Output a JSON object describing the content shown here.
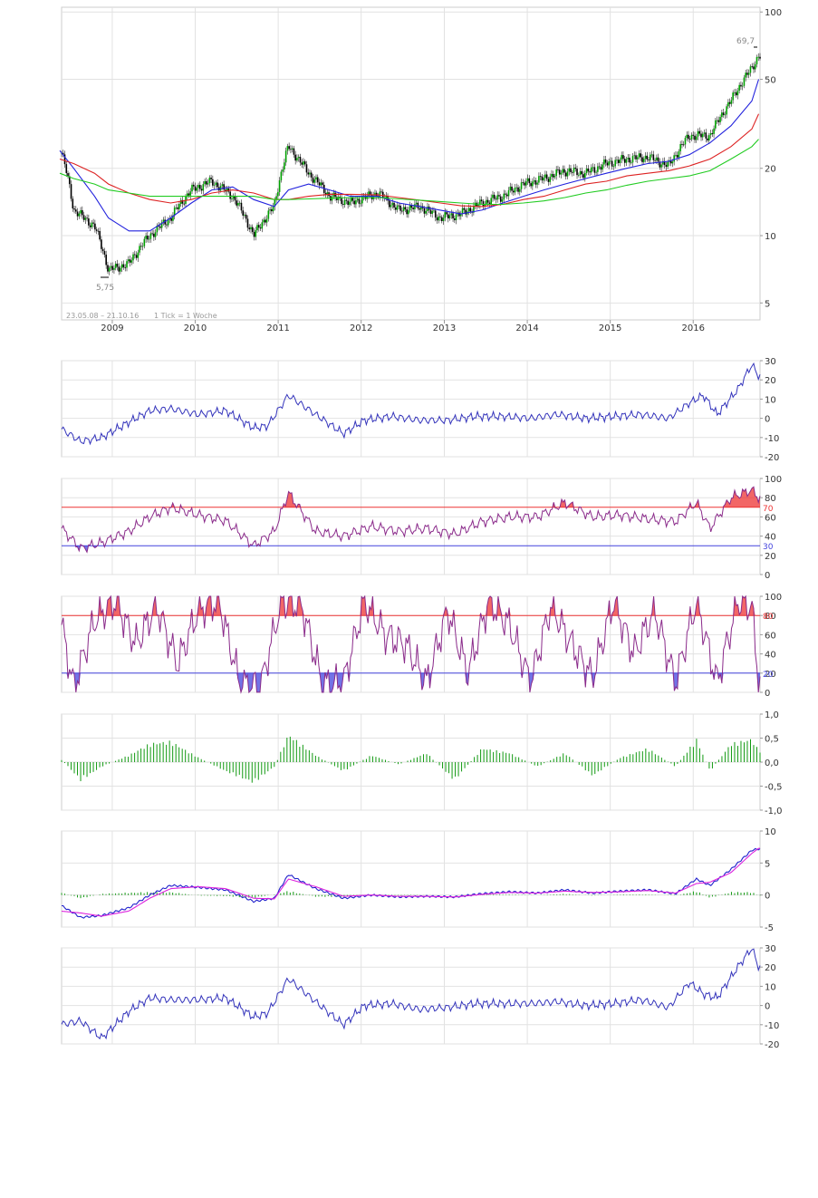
{
  "main_chart": {
    "range_label": "23.05.08 – 21.10.16",
    "interval_label": "1 Tick = 1 Woche",
    "max_label": "69,7",
    "min_label": "5,75",
    "x_labels": [
      "2009",
      "2010",
      "2011",
      "2012",
      "2013",
      "2014",
      "2015",
      "2016"
    ],
    "y_labels": [
      "100",
      "50",
      "20",
      "10",
      "5"
    ],
    "colors": {
      "candle_up": "#00a000",
      "candle_down": "#000000",
      "ma_fast": "#2222dd",
      "ma_mid": "#dd2222",
      "ma_slow": "#22cc22"
    }
  },
  "panels": [
    {
      "id": "momentum",
      "y_labels": [
        "30",
        "20",
        "10",
        "0",
        "-10",
        "-20"
      ],
      "line_color": "#3333bb"
    },
    {
      "id": "rsi",
      "y_labels": [
        "100",
        "80",
        "60",
        "40",
        "20",
        "0"
      ],
      "upper": "70",
      "lower": "30",
      "line_color": "#8a2a8a",
      "upper_color": "#ee3333",
      "lower_color": "#4444dd"
    },
    {
      "id": "stochastic",
      "y_labels": [
        "100",
        "80",
        "60",
        "40",
        "20",
        "0"
      ],
      "upper": "80",
      "lower": "20",
      "line_color": "#8a2a8a",
      "upper_color": "#ee3333",
      "lower_color": "#4444dd"
    },
    {
      "id": "histogram",
      "y_labels": [
        "1,0",
        "0,5",
        "0,0",
        "-0,5",
        "-1,0"
      ],
      "bar_color": "#119911"
    },
    {
      "id": "macd",
      "y_labels": [
        "10",
        "5",
        "0",
        "-5"
      ],
      "macd_color": "#2222cc",
      "signal_color": "#dd22dd",
      "hist_color": "#119911"
    },
    {
      "id": "roc",
      "y_labels": [
        "30",
        "20",
        "10",
        "0",
        "-10",
        "-20"
      ],
      "line_color": "#3333bb"
    }
  ],
  "chart_data": [
    {
      "type": "line",
      "subtype": "candlestick-weekly",
      "y_scale": "log",
      "ylim": [
        4.2,
        105
      ],
      "x": [
        "2008-05",
        "2008-07",
        "2008-10",
        "2008-12",
        "2009-03",
        "2009-06",
        "2009-09",
        "2009-12",
        "2010-03",
        "2010-06",
        "2010-09",
        "2010-12",
        "2011-02",
        "2011-05",
        "2011-08",
        "2011-11",
        "2012-03",
        "2012-06",
        "2012-09",
        "2012-12",
        "2013-03",
        "2013-06",
        "2013-09",
        "2013-12",
        "2014-03",
        "2014-06",
        "2014-09",
        "2014-12",
        "2015-03",
        "2015-06",
        "2015-09",
        "2015-12",
        "2016-03",
        "2016-06",
        "2016-09",
        "2016-10"
      ],
      "series": [
        {
          "values": [
            25,
            13,
            11,
            7,
            7.5,
            10,
            12,
            16,
            17.5,
            15,
            10,
            13.5,
            25,
            19,
            15,
            14,
            15.5,
            13,
            13.5,
            12,
            12.5,
            14,
            15,
            17,
            18,
            19.5,
            19,
            21,
            22,
            22.5,
            20.5,
            28,
            28,
            40,
            56,
            64
          ]
        },
        {
          "values": [
            24,
            20,
            15,
            12,
            10.5,
            10.5,
            12,
            14,
            16,
            16.5,
            14.5,
            13.5,
            16,
            17,
            16,
            15,
            15,
            14,
            13.5,
            13,
            12.5,
            13,
            14,
            15,
            16,
            17,
            18,
            19,
            20,
            21,
            21.5,
            23,
            26,
            31,
            40,
            50
          ]
        },
        {
          "values": [
            22,
            21,
            19,
            17,
            15.5,
            14.5,
            14,
            14.5,
            15.5,
            16,
            15.5,
            14.5,
            14.5,
            15,
            15.3,
            15.3,
            15.2,
            14.8,
            14.4,
            14,
            13.6,
            13.5,
            13.8,
            14.5,
            15,
            16,
            17,
            17.5,
            18.5,
            19,
            19.5,
            20.5,
            22,
            25,
            30,
            35
          ]
        },
        {
          "values": [
            19,
            18,
            17,
            16,
            15.5,
            15,
            15,
            15,
            15,
            15,
            15,
            14.5,
            14.5,
            14.6,
            14.7,
            14.8,
            14.8,
            14.6,
            14.4,
            14.2,
            14,
            13.8,
            13.8,
            14,
            14.3,
            14.8,
            15.5,
            16,
            16.8,
            17.5,
            18,
            18.5,
            19.5,
            22,
            25,
            27
          ]
        }
      ],
      "high": 69.7,
      "low": 5.75
    },
    {
      "type": "line",
      "ylim": [
        -20,
        30
      ],
      "x": [
        "2008-05",
        "2008-08",
        "2008-11",
        "2009-03",
        "2009-06",
        "2009-09",
        "2010-01",
        "2010-05",
        "2010-09",
        "2010-11",
        "2011-02",
        "2011-06",
        "2011-10",
        "2012-01",
        "2012-05",
        "2012-09",
        "2013-01",
        "2013-05",
        "2013-09",
        "2014-01",
        "2014-05",
        "2014-09",
        "2015-01",
        "2015-05",
        "2015-09",
        "2015-12",
        "2016-02",
        "2016-04",
        "2016-07",
        "2016-09",
        "2016-10"
      ],
      "series": [
        {
          "values": [
            -5,
            -12,
            -10,
            -2,
            4,
            5,
            2,
            4,
            -5,
            -4,
            12,
            2,
            -8,
            -1,
            1,
            -1,
            -1,
            1,
            1,
            0,
            2,
            0,
            1,
            2,
            0,
            8,
            12,
            2,
            15,
            28,
            22
          ]
        }
      ]
    },
    {
      "type": "line",
      "ylim": [
        0,
        100
      ],
      "x": [
        "2008-05",
        "2008-08",
        "2008-11",
        "2009-03",
        "2009-06",
        "2009-09",
        "2010-01",
        "2010-05",
        "2010-09",
        "2010-12",
        "2011-02",
        "2011-06",
        "2011-10",
        "2012-02",
        "2012-06",
        "2012-10",
        "2013-02",
        "2013-06",
        "2013-10",
        "2014-02",
        "2014-06",
        "2014-10",
        "2015-02",
        "2015-06",
        "2015-10",
        "2016-01",
        "2016-03",
        "2016-06",
        "2016-09",
        "2016-10"
      ],
      "series": [
        {
          "values": [
            50,
            27,
            33,
            45,
            60,
            70,
            62,
            56,
            30,
            45,
            85,
            45,
            40,
            50,
            45,
            48,
            42,
            55,
            60,
            60,
            75,
            60,
            62,
            58,
            55,
            75,
            48,
            80,
            88,
            80
          ]
        }
      ]
    },
    {
      "type": "line",
      "ylim": [
        0,
        100
      ],
      "x": [
        "2008-05",
        "2008-07",
        "2008-10",
        "2009-01",
        "2009-04",
        "2009-07",
        "2009-10",
        "2010-01",
        "2010-04",
        "2010-07",
        "2010-10",
        "2011-01",
        "2011-04",
        "2011-07",
        "2011-10",
        "2012-01",
        "2012-04",
        "2012-07",
        "2012-10",
        "2013-01",
        "2013-04",
        "2013-07",
        "2013-10",
        "2014-01",
        "2014-04",
        "2014-07",
        "2014-10",
        "2015-01",
        "2015-04",
        "2015-07",
        "2015-10",
        "2016-01",
        "2016-04",
        "2016-07",
        "2016-09",
        "2016-10"
      ],
      "series": [
        {
          "values": [
            80,
            5,
            75,
            95,
            50,
            90,
            30,
            85,
            95,
            10,
            5,
            95,
            90,
            8,
            10,
            95,
            60,
            50,
            10,
            85,
            20,
            95,
            70,
            10,
            90,
            50,
            15,
            95,
            40,
            85,
            10,
            95,
            10,
            95,
            90,
            10
          ]
        }
      ]
    },
    {
      "type": "bar",
      "ylim": [
        -1,
        1
      ],
      "x": [
        "2008-05",
        "2008-08",
        "2008-11",
        "2009-03",
        "2009-06",
        "2009-09",
        "2010-01",
        "2010-05",
        "2010-09",
        "2010-12",
        "2011-02",
        "2011-06",
        "2011-10",
        "2012-02",
        "2012-06",
        "2012-10",
        "2013-02",
        "2013-06",
        "2013-10",
        "2014-02",
        "2014-06",
        "2014-10",
        "2015-02",
        "2015-06",
        "2015-10",
        "2016-01",
        "2016-03",
        "2016-06",
        "2016-09",
        "2016-10"
      ],
      "series": [
        {
          "values": [
            0.1,
            -0.4,
            -0.1,
            0.15,
            0.4,
            0.45,
            0.1,
            -0.2,
            -0.45,
            -0.1,
            0.6,
            0.15,
            -0.2,
            0.15,
            -0.05,
            0.2,
            -0.4,
            0.3,
            0.2,
            -0.1,
            0.2,
            -0.3,
            0.1,
            0.3,
            -0.1,
            0.5,
            -0.2,
            0.4,
            0.5,
            0.25
          ]
        }
      ]
    },
    {
      "type": "line",
      "ylim": [
        -5,
        10
      ],
      "x": [
        "2008-05",
        "2008-08",
        "2008-11",
        "2009-03",
        "2009-06",
        "2009-09",
        "2010-01",
        "2010-05",
        "2010-09",
        "2010-12",
        "2011-02",
        "2011-06",
        "2011-10",
        "2012-02",
        "2012-06",
        "2012-10",
        "2013-02",
        "2013-06",
        "2013-10",
        "2014-02",
        "2014-06",
        "2014-10",
        "2015-02",
        "2015-06",
        "2015-10",
        "2016-01",
        "2016-03",
        "2016-06",
        "2016-09",
        "2016-10"
      ],
      "series": [
        {
          "values": [
            -1.5,
            -3.5,
            -3.2,
            -2,
            0,
            1.5,
            1.2,
            0.8,
            -1,
            -0.5,
            3.2,
            1,
            -0.5,
            0,
            -0.3,
            -0.2,
            -0.3,
            0.2,
            0.5,
            0.3,
            0.8,
            0.3,
            0.6,
            0.8,
            0.2,
            2.5,
            1.5,
            4,
            7,
            7.2
          ]
        },
        {
          "values": [
            -2.5,
            -2.8,
            -3.3,
            -2.5,
            -0.5,
            1,
            1.3,
            1,
            -0.5,
            -0.6,
            2.5,
            1.3,
            -0.2,
            0,
            -0.2,
            -0.2,
            -0.3,
            0.1,
            0.4,
            0.3,
            0.6,
            0.4,
            0.5,
            0.7,
            0.3,
            1.8,
            2,
            3.5,
            6.5,
            7.3
          ]
        },
        {
          "values": [
            0.5,
            -0.6,
            0.2,
            0.4,
            0.5,
            0.5,
            -0.1,
            -0.2,
            -0.5,
            0.1,
            0.7,
            -0.3,
            -0.3,
            0,
            -0.1,
            0,
            0,
            0.1,
            0.1,
            0,
            0.2,
            -0.1,
            0.1,
            0.1,
            -0.1,
            0.7,
            -0.5,
            0.5,
            0.5,
            -0.1
          ]
        }
      ]
    },
    {
      "type": "line",
      "ylim": [
        -20,
        30
      ],
      "x": [
        "2008-05",
        "2008-08",
        "2008-11",
        "2009-03",
        "2009-06",
        "2009-09",
        "2010-01",
        "2010-05",
        "2010-09",
        "2010-11",
        "2011-02",
        "2011-06",
        "2011-10",
        "2012-01",
        "2012-05",
        "2012-09",
        "2013-01",
        "2013-05",
        "2013-09",
        "2014-01",
        "2014-05",
        "2014-09",
        "2015-01",
        "2015-05",
        "2015-09",
        "2015-12",
        "2016-02",
        "2016-04",
        "2016-07",
        "2016-09",
        "2016-10"
      ],
      "series": [
        {
          "values": [
            -10,
            -8,
            -17,
            -3,
            4,
            3,
            3,
            4,
            -6,
            -4,
            14,
            2,
            -10,
            0,
            1,
            -2,
            -1,
            1,
            1,
            1,
            2,
            0,
            1,
            3,
            -1,
            12,
            6,
            4,
            20,
            30,
            20
          ]
        }
      ]
    }
  ]
}
